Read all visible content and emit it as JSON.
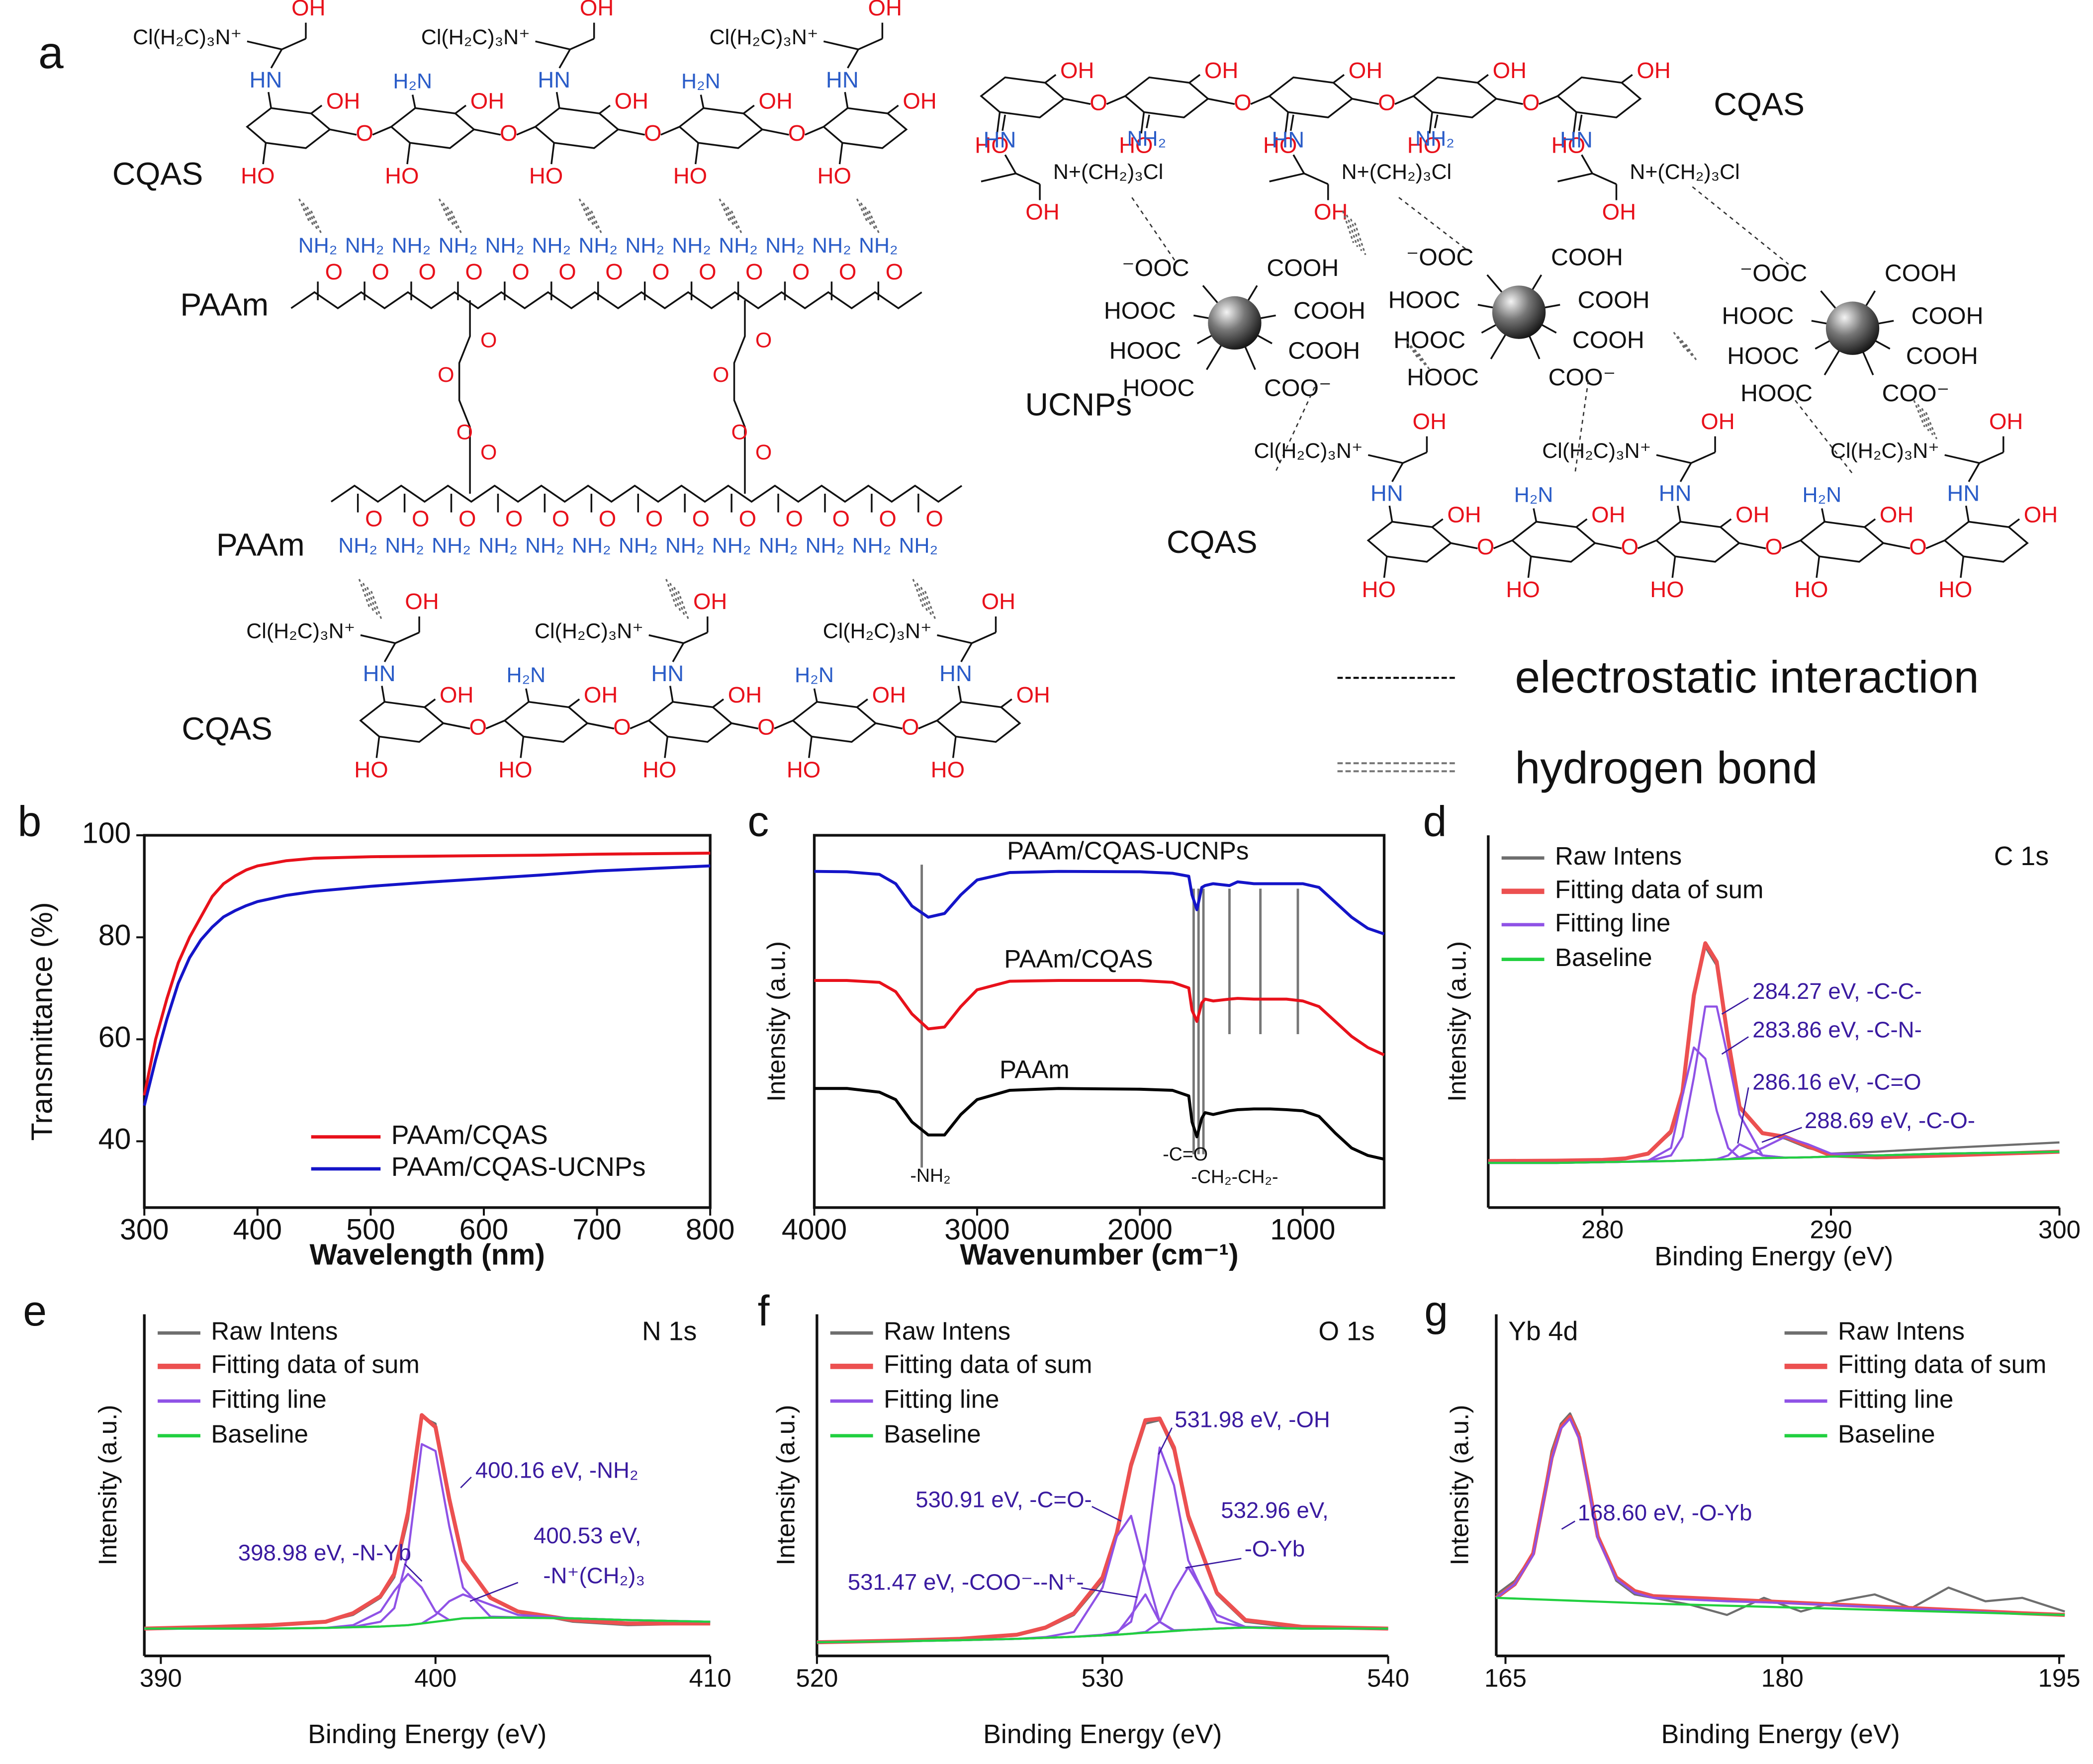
{
  "diagram": {
    "panel": "a",
    "labels": {
      "cqas": "CQAS",
      "paam": "PAAm",
      "ucnps": "UCNPs"
    },
    "legend": {
      "electrostatic": "electrostatic interaction",
      "hydrogen": "hydrogen bond"
    },
    "groups": {
      "oh": "OH",
      "ho": "HO",
      "hn": "HN",
      "h2n": "H₂N",
      "nh2": "NH₂",
      "o": "O",
      "quat": "Cl(H₂C)₃N⁺",
      "quatR": "N+(CH₂)₃Cl",
      "cooh": "COOH",
      "hooc": "HOOC",
      "coo": "COO⁻",
      "ooc": "⁻OOC"
    }
  },
  "chart_data": [
    {
      "type": "line",
      "panel": "b",
      "xlabel": "Wavelength (nm)",
      "ylabel": "Transmittance (%)",
      "x": [
        300,
        310,
        320,
        330,
        340,
        350,
        360,
        370,
        380,
        390,
        400,
        425,
        450,
        500,
        550,
        600,
        650,
        700,
        750,
        800
      ],
      "series": [
        {
          "name": "PAAm/CQAS",
          "color": "#e8111b",
          "values": [
            49,
            60,
            68,
            75,
            80,
            84,
            88,
            90.5,
            92,
            93.2,
            94,
            95,
            95.5,
            95.8,
            95.9,
            96,
            96.1,
            96.3,
            96.4,
            96.5
          ]
        },
        {
          "name": "PAAm/CQAS-UCNPs",
          "color": "#1414c8",
          "values": [
            47,
            56,
            64,
            71,
            76,
            79.5,
            82,
            84,
            85.2,
            86.2,
            87,
            88.2,
            89,
            90,
            90.8,
            91.5,
            92.2,
            93,
            93.5,
            94
          ]
        }
      ],
      "xlim": [
        300,
        800
      ],
      "xticks": [
        300,
        400,
        500,
        600,
        700,
        800
      ],
      "ylim": [
        27,
        100
      ],
      "yticks": [
        40,
        60,
        80,
        100
      ],
      "legend": "lower right",
      "box": true
    },
    {
      "type": "line",
      "panel": "c",
      "xlabel": "Wavenumber (cm⁻¹)",
      "ylabel": "Intensity (a.u.)",
      "x": [
        4000,
        3800,
        3600,
        3500,
        3400,
        3300,
        3200,
        3100,
        3000,
        2800,
        2500,
        2000,
        1800,
        1700,
        1680,
        1650,
        1620,
        1600,
        1550,
        1450,
        1400,
        1300,
        1200,
        1100,
        1000,
        900,
        800,
        700,
        600,
        500
      ],
      "series": [
        {
          "name": "PAAm/CQAS-UCNPs",
          "color": "#1414c8",
          "values": [
            90.3,
            90.2,
            89.5,
            87,
            81,
            78,
            79,
            84,
            88,
            90,
            90.3,
            90.2,
            89.8,
            89,
            84,
            80,
            86,
            86.5,
            87,
            86.5,
            87.5,
            87,
            87,
            87,
            87,
            86,
            82,
            78,
            75,
            73.5
          ]
        },
        {
          "name": "PAAm/CQAS",
          "color": "#e8111b",
          "values": [
            61,
            61,
            60.5,
            58,
            52,
            48,
            48.5,
            54,
            58.5,
            60.8,
            61,
            61,
            60.5,
            59,
            53,
            50,
            55,
            56,
            55.5,
            56,
            56.2,
            56,
            56,
            56,
            55.5,
            54,
            50,
            46,
            43,
            41
          ]
        },
        {
          "name": "PAAm",
          "color": "#000000",
          "values": [
            32,
            32,
            31,
            29,
            23,
            19.5,
            19.5,
            25,
            29,
            31.5,
            32,
            31.8,
            31.5,
            30,
            23,
            19,
            24,
            25.5,
            25,
            26,
            26.3,
            26.5,
            26.5,
            26.3,
            26,
            24.5,
            20,
            16,
            14,
            13
          ]
        }
      ],
      "xlim": [
        4000,
        500
      ],
      "xticks": [
        4000,
        3000,
        2000,
        1000
      ],
      "ylim": [
        0,
        100
      ],
      "vlines": [
        3340,
        1670,
        1640,
        1610,
        1450,
        1260,
        1030
      ],
      "annotations": [
        "-NH₂",
        "-C=O",
        "-CH₂-CH₂-"
      ],
      "legend": "inline",
      "box": true
    },
    {
      "type": "line",
      "panel": "d",
      "core_level": "C 1s",
      "xlabel": "Binding Energy (eV)",
      "ylabel": "Intensity (a.u.)",
      "x": [
        275,
        278,
        280,
        281,
        282,
        283,
        283.5,
        284,
        284.5,
        285,
        285.5,
        286,
        287,
        288,
        289,
        290,
        292,
        295,
        300
      ],
      "series": [
        {
          "name": "Raw Intens",
          "color": "#6e6e6e",
          "values": [
            12.5,
            12.6,
            12.8,
            13.2,
            14.5,
            20,
            31,
            56,
            70,
            65,
            44,
            27,
            20,
            18.5,
            16,
            14.5,
            15,
            16,
            17.5
          ]
        },
        {
          "name": "Fitting data of sum",
          "color": "#ec5050",
          "values": [
            12.5,
            12.6,
            12.8,
            13.2,
            14.5,
            20.5,
            31,
            57,
            71,
            66,
            45,
            27,
            20,
            19,
            16.5,
            14,
            13.5,
            14,
            15
          ]
        },
        {
          "name": "Fitting line",
          "color": "#8f52e6",
          "peaks": [
            [
              12,
              12,
              12.2,
              12.3,
              12.5,
              14,
              19,
              35,
              54,
              54,
              40,
              25,
              14,
              13.4,
              13.5,
              13.7,
              14,
              14.5,
              15
            ],
            [
              12,
              12,
              12.2,
              12.3,
              12.6,
              16,
              30,
              43,
              40,
              26,
              16,
              13.3,
              13.3,
              13.4,
              13.5,
              13.7,
              14,
              14.5,
              15
            ],
            [
              12,
              12,
              12.2,
              12.3,
              12.4,
              12.5,
              12.6,
              12.7,
              12.8,
              13,
              14,
              17,
              14,
              13.4,
              13.5,
              13.7,
              14,
              14.5,
              15
            ],
            [
              12,
              12,
              12.2,
              12.3,
              12.4,
              12.5,
              12.6,
              12.7,
              12.8,
              12.9,
              13,
              13.5,
              16,
              19,
              17,
              14.5,
              14,
              14.5,
              15
            ]
          ]
        },
        {
          "name": "Baseline",
          "color": "#22d040",
          "values": [
            12,
            12,
            12.2,
            12.3,
            12.4,
            12.5,
            12.6,
            12.7,
            12.8,
            12.9,
            13,
            13.1,
            13.3,
            13.4,
            13.5,
            13.7,
            14,
            14.5,
            15
          ]
        }
      ],
      "xlim": [
        275,
        300
      ],
      "xticks": [
        280,
        290,
        300
      ],
      "ylim": [
        0,
        100
      ],
      "annotations": [
        "284.27 eV, -C-C-",
        "283.86 eV, -C-N-",
        "286.16 eV, -C=O",
        "288.69 eV, -C-O-"
      ],
      "legend": "upper left"
    },
    {
      "type": "line",
      "panel": "e",
      "core_level": "N 1s",
      "xlabel": "Binding Energy (eV)",
      "ylabel": "Intensity (a.u.)",
      "x": [
        389.4,
        392,
        394,
        396,
        397,
        398,
        398.5,
        399,
        399.5,
        400,
        400.5,
        401,
        402,
        403,
        405,
        407,
        410
      ],
      "series": [
        {
          "name": "Raw Intens",
          "color": "#6e6e6e",
          "values": [
            8,
            8.5,
            9,
            10,
            12,
            17,
            23,
            40,
            70,
            68,
            45,
            28,
            17,
            13,
            10,
            9,
            9.5
          ]
        },
        {
          "name": "Fitting data of sum",
          "color": "#ec5050",
          "values": [
            8,
            8.5,
            9,
            10,
            12.5,
            17.5,
            24,
            42,
            70.5,
            67,
            46,
            28,
            17,
            13,
            10.5,
            9.5,
            9.5
          ]
        },
        {
          "name": "Fitting line",
          "color": "#8f52e6",
          "peaks": [
            [
              8,
              8,
              8,
              8.2,
              8.5,
              10,
              14,
              30,
              62,
              60,
              38,
              20,
              11.5,
              11.3,
              11,
              10.5,
              10
            ],
            [
              8,
              8,
              8,
              8.2,
              9,
              13,
              19,
              24,
              20,
              13,
              10.5,
              11,
              11.2,
              11.2,
              11,
              10.5,
              10
            ],
            [
              8,
              8,
              8,
              8.2,
              8.4,
              8.6,
              8.8,
              9,
              9.5,
              12,
              16,
              18,
              15,
              12,
              11,
              10.5,
              10
            ]
          ]
        },
        {
          "name": "Baseline",
          "color": "#22d040",
          "values": [
            8,
            8,
            8,
            8.2,
            8.4,
            8.6,
            8.8,
            9,
            9.5,
            10,
            10.5,
            11,
            11.2,
            11.2,
            11,
            10.5,
            10
          ]
        }
      ],
      "xlim": [
        389.4,
        410
      ],
      "xticks": [
        390,
        400,
        410
      ],
      "ylim": [
        0,
        100
      ],
      "annotations": [
        "400.16 eV, -NH₂",
        "398.98 eV, -N-Yb",
        "400.53 eV,",
        "-N⁺(CH₂)₃"
      ],
      "legend": "upper left"
    },
    {
      "type": "line",
      "panel": "f",
      "core_level": "O 1s",
      "xlabel": "Binding Energy (eV)",
      "ylabel": "Intensity (a.u.)",
      "x": [
        520,
        523,
        525,
        527,
        528,
        529,
        530,
        530.5,
        531,
        531.5,
        532,
        532.5,
        533,
        534,
        535,
        537,
        540
      ],
      "series": [
        {
          "name": "Raw Intens",
          "color": "#6e6e6e",
          "values": [
            4,
            4.5,
            5,
            6,
            8,
            12,
            22,
            35,
            55,
            68,
            69,
            60,
            40,
            18,
            10,
            8,
            8
          ]
        },
        {
          "name": "Fitting data of sum",
          "color": "#ec5050",
          "values": [
            4,
            4.5,
            5,
            6.2,
            8.3,
            12.5,
            23,
            36,
            56,
            69,
            69.5,
            61,
            41,
            18.5,
            10.5,
            8.5,
            8
          ]
        },
        {
          "name": "Fitting line",
          "color": "#8f52e6",
          "peaks": [
            [
              4,
              4.3,
              4.6,
              5,
              5.3,
              5.6,
              6.2,
              7,
              10,
              28,
              61,
              50,
              28,
              10,
              8.5,
              8,
              8
            ],
            [
              4,
              4.3,
              4.6,
              5,
              5.5,
              7,
              20,
              35,
              41,
              25,
              10,
              7.5,
              7.6,
              8,
              8.3,
              8,
              8
            ],
            [
              4,
              4.3,
              4.6,
              5,
              5.3,
              5.6,
              6,
              6.5,
              12,
              18,
              10,
              7.3,
              7.6,
              8,
              8.3,
              8,
              8
            ],
            [
              4,
              4.3,
              4.6,
              5,
              5.3,
              5.6,
              6,
              6.2,
              6.5,
              7,
              10,
              19,
              26,
              12,
              8.5,
              8,
              8
            ]
          ]
        },
        {
          "name": "Baseline",
          "color": "#22d040",
          "values": [
            4,
            4.3,
            4.6,
            5,
            5.3,
            5.6,
            6,
            6.2,
            6.5,
            6.8,
            7,
            7.3,
            7.6,
            8,
            8.3,
            8,
            8
          ]
        }
      ],
      "xlim": [
        520,
        540
      ],
      "xticks": [
        520,
        530,
        540
      ],
      "ylim": [
        0,
        100
      ],
      "annotations": [
        "531.98 eV, -OH",
        "530.91 eV, -C=O-",
        "532.96 eV,",
        "-O-Yb",
        "531.47 eV, -COO⁻--N⁺-"
      ],
      "legend": "upper left"
    },
    {
      "type": "line",
      "panel": "g",
      "core_level": "Yb 4d",
      "xlabel": "Binding Energy (eV)",
      "ylabel": "Intensity (a.u.)",
      "x": [
        164.5,
        165.5,
        166.5,
        167,
        167.5,
        168,
        168.5,
        169,
        169.5,
        170,
        171,
        172,
        173,
        175,
        177,
        179,
        181,
        183,
        185,
        187,
        189,
        191,
        193,
        195.3
      ],
      "series": [
        {
          "name": "Raw Intens",
          "color": "#6e6e6e",
          "values": [
            18,
            22,
            30,
            45,
            60,
            68,
            71,
            65,
            50,
            35,
            22,
            18,
            17,
            15,
            12,
            17,
            13,
            16,
            18,
            14,
            20,
            16,
            17,
            13
          ]
        },
        {
          "name": "Fitting data of sum",
          "color": "#ec5050",
          "values": [
            17,
            21,
            30,
            44,
            58,
            67,
            70,
            64,
            50,
            35,
            23,
            19,
            17.5,
            17,
            16.5,
            16,
            15.5,
            15,
            14.5,
            14,
            13.5,
            13,
            12.5,
            12
          ]
        },
        {
          "name": "Fitting line",
          "color": "#8f52e6",
          "peaks": [
            [
              17,
              21,
              29.5,
              43.5,
              57.5,
              66.5,
              69.5,
              63.5,
              49.5,
              34.5,
              22.5,
              18.5,
              17,
              16.5,
              16,
              15.7,
              15.3,
              14.8,
              14.3,
              13.8,
              13.3,
              12.8,
              12.3,
              12
            ]
          ]
        },
        {
          "name": "Baseline",
          "color": "#22d040",
          "values": [
            17,
            16.8,
            16.6,
            16.5,
            16.4,
            16.3,
            16.2,
            16.1,
            16,
            15.9,
            15.7,
            15.5,
            15.3,
            15,
            14.7,
            14.4,
            14.1,
            13.8,
            13.5,
            13.2,
            12.9,
            12.6,
            12.3,
            12
          ]
        }
      ],
      "xlim": [
        164.5,
        195.3
      ],
      "xticks": [
        165,
        180,
        195
      ],
      "ylim": [
        0,
        100
      ],
      "annotations": [
        "168.60 eV, -O-Yb"
      ],
      "legend": "upper right"
    }
  ]
}
